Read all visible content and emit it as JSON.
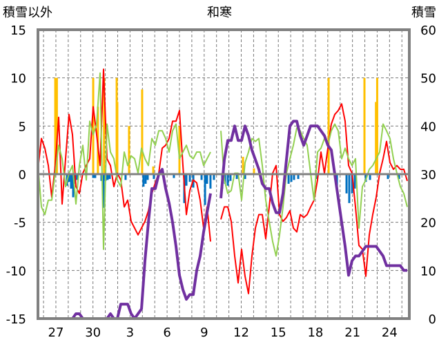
{
  "chart_data": {
    "type": "line",
    "title": "和寒",
    "ylabel_left": "積雪以外",
    "ylabel_right": "積雪",
    "ylim_left": [
      -15,
      15
    ],
    "yticks_left": [
      -15,
      -10,
      -5,
      0,
      5,
      10,
      15
    ],
    "ylim_right": [
      0,
      60
    ],
    "yticks_right": [
      0,
      10,
      20,
      30,
      40,
      50,
      60
    ],
    "xlim": [
      -1.45,
      28.6
    ],
    "x_unit": "days from the day labeled 27",
    "xticks": [
      0,
      3,
      6,
      9,
      12,
      15,
      18,
      21,
      24,
      27
    ],
    "xtick_labels": [
      "27",
      "30",
      "3",
      "6",
      "9",
      "12",
      "15",
      "18",
      "21",
      "24"
    ],
    "grid": true,
    "colors": {
      "red": "#FF0000",
      "green": "#92D050",
      "purple": "#7030A0",
      "orange": "#FFC000",
      "blue": "#0070C0",
      "frame": "#808080"
    },
    "line_x_start": -1.45,
    "line_x_step": 0.2793,
    "series": [
      {
        "name": "red",
        "axis": "left",
        "color": "#FF0000",
        "values": [
          0.5,
          3.7,
          2.7,
          0.9,
          -2.4,
          0.9,
          5.9,
          -3.1,
          1.6,
          6.2,
          4.1,
          -1.3,
          -2.0,
          0.1,
          0.9,
          1.6,
          7.0,
          4.1,
          0.9,
          10.9,
          1.6,
          0.9,
          -1.3,
          0.1,
          -0.6,
          -3.4,
          -2.7,
          -4.9,
          -5.6,
          -6.3,
          -5.6,
          -4.9,
          -3.8,
          -2.0,
          -0.9,
          0.1,
          2.7,
          3.0,
          3.7,
          5.5,
          5.5,
          6.6,
          0.9,
          -4.2,
          -1.7,
          -0.6,
          -0.9,
          -2.7,
          -5.6,
          -3.4,
          -7.0,
          null,
          null,
          -4.7,
          -3.4,
          -3.4,
          -4.9,
          -8.5,
          -11.3,
          -7.8,
          -10.6,
          -12.4,
          -8.5,
          -5.6,
          -4.2,
          -4.2,
          -6.7,
          -3.4,
          0.1,
          0.9,
          -4.2,
          -4.9,
          -4.5,
          -3.8,
          -5.6,
          -6.0,
          -4.2,
          -4.5,
          -4.2,
          -3.4,
          -2.7,
          -0.6,
          2.3,
          0.1,
          2.7,
          5.2,
          6.2,
          6.6,
          7.3,
          5.5,
          0.9,
          0.1,
          -3.4,
          -7.4,
          -7.8,
          -10.6,
          -6.3,
          -4.2,
          -2.4,
          0.1,
          1.6,
          3.4,
          1.2,
          0.5,
          0.9,
          0.5,
          0.5,
          -0.7
        ]
      },
      {
        "name": "green",
        "axis": "left",
        "color": "#92D050",
        "values": [
          0.9,
          -3.4,
          -4.2,
          -2.7,
          -2.7,
          0.1,
          3.0,
          1.6,
          -1.3,
          0.1,
          0.9,
          -3.1,
          0.9,
          3.0,
          -0.6,
          5.5,
          4.1,
          5.2,
          10.5,
          -7.8,
          5.2,
          2.3,
          1.6,
          -0.6,
          -1.3,
          2.3,
          0.9,
          1.9,
          1.6,
          0.1,
          2.7,
          1.6,
          0.9,
          3.7,
          3.0,
          4.5,
          4.5,
          3.7,
          2.3,
          4.5,
          5.2,
          1.6,
          2.3,
          3.0,
          1.9,
          1.6,
          2.3,
          2.3,
          0.9,
          1.6,
          2.3,
          null,
          null,
          4.5,
          -0.6,
          -2.0,
          -1.7,
          0.1,
          0.1,
          -2.7,
          1.2,
          2.3,
          3.7,
          3.4,
          3.7,
          0.9,
          -2.7,
          -4.9,
          -7.0,
          -8.5,
          -6.3,
          -3.4,
          0.1,
          1.6,
          3.0,
          4.8,
          4.5,
          3.7,
          3.0,
          0.1,
          -2.7,
          2.3,
          2.7,
          3.7,
          3.0,
          4.5,
          5.2,
          4.5,
          1.6,
          2.7,
          1.6,
          0.9,
          1.6,
          -5.6,
          -1.3,
          -0.6,
          0.5,
          0.9,
          1.6,
          2.3,
          5.2,
          4.5,
          3.7,
          1.6,
          0.1,
          -1.3,
          -2.0,
          -3.4
        ]
      },
      {
        "name": "purple",
        "axis": "right",
        "color": "#7030A0",
        "values": [
          0,
          0,
          0,
          0,
          0,
          0,
          0,
          0,
          0,
          0,
          0,
          1,
          1,
          0,
          0,
          0,
          0,
          0,
          0,
          0,
          0,
          1,
          0,
          0,
          3,
          3,
          3,
          1,
          0,
          1,
          2,
          12,
          20,
          27,
          27,
          30,
          31,
          27,
          24,
          20,
          15,
          9,
          6,
          4,
          5,
          5,
          10,
          13,
          18,
          22,
          26,
          null,
          null,
          25,
          33,
          37,
          37,
          40,
          37,
          37,
          40,
          38,
          35,
          33,
          31,
          28,
          27,
          27,
          24,
          22,
          22,
          26,
          33,
          40,
          41,
          41,
          38,
          36,
          38,
          40,
          40,
          40,
          39,
          38,
          36,
          35,
          30,
          25,
          20,
          15,
          9,
          12,
          13,
          13,
          14,
          15,
          15,
          15,
          15,
          14,
          13,
          11,
          11,
          11,
          11,
          11,
          10,
          10
        ]
      }
    ],
    "bars_orange": [
      [
        -0.05,
        10
      ],
      [
        0.08,
        10
      ],
      [
        3.02,
        10
      ],
      [
        3.4,
        7
      ],
      [
        3.9,
        10
      ],
      [
        4.92,
        10
      ],
      [
        4.97,
        7.5
      ],
      [
        5.92,
        5
      ],
      [
        6.98,
        8.8
      ],
      [
        7.88,
        0.8
      ],
      [
        10.0,
        5
      ],
      [
        15.14,
        1.8
      ],
      [
        16.03,
        0.6
      ],
      [
        22.07,
        10
      ],
      [
        24.97,
        10
      ],
      [
        26.0,
        10
      ],
      [
        25.9,
        7.5
      ]
    ],
    "bars_blue": [
      [
        0.9,
        -1.2
      ],
      [
        1.06,
        -0.8
      ],
      [
        1.23,
        -1.5
      ],
      [
        1.4,
        -2.4
      ],
      [
        1.56,
        -1
      ],
      [
        1.73,
        -0.6
      ],
      [
        3.02,
        -0.4
      ],
      [
        3.18,
        -0.4
      ],
      [
        3.69,
        -0.7
      ],
      [
        3.85,
        -3.5
      ],
      [
        4.02,
        -0.7
      ],
      [
        4.19,
        -0.6
      ],
      [
        4.36,
        -0.5
      ],
      [
        5.64,
        -0.6
      ],
      [
        7.09,
        -1.3
      ],
      [
        7.26,
        -1.0
      ],
      [
        7.43,
        -0.6
      ],
      [
        7.93,
        -0.5
      ],
      [
        9.55,
        -0.4
      ],
      [
        10.39,
        -3.0
      ],
      [
        10.56,
        -1.2
      ],
      [
        10.84,
        -0.8
      ],
      [
        11.12,
        -1.4
      ],
      [
        11.79,
        -0.6
      ],
      [
        12.07,
        -3.2
      ],
      [
        12.23,
        -1
      ],
      [
        12.51,
        -1.5
      ],
      [
        12.79,
        -0.6
      ],
      [
        13.46,
        -1.5
      ],
      [
        13.69,
        -1
      ],
      [
        13.91,
        -1.2
      ],
      [
        14.13,
        -0.7
      ],
      [
        14.64,
        -0.5
      ],
      [
        15.31,
        -0.5
      ],
      [
        18.83,
        -1
      ],
      [
        19.05,
        -0.8
      ],
      [
        19.27,
        -0.6
      ],
      [
        19.61,
        -0.5
      ],
      [
        21.06,
        -0.5
      ],
      [
        22.74,
        -1.5
      ],
      [
        23.52,
        -2
      ],
      [
        23.74,
        -3
      ],
      [
        23.97,
        -2
      ],
      [
        24.19,
        -1.5
      ],
      [
        25.08,
        -0.8
      ],
      [
        25.42,
        -0.6
      ],
      [
        26.87,
        -0.5
      ],
      [
        27.77,
        -0.5
      ]
    ]
  }
}
